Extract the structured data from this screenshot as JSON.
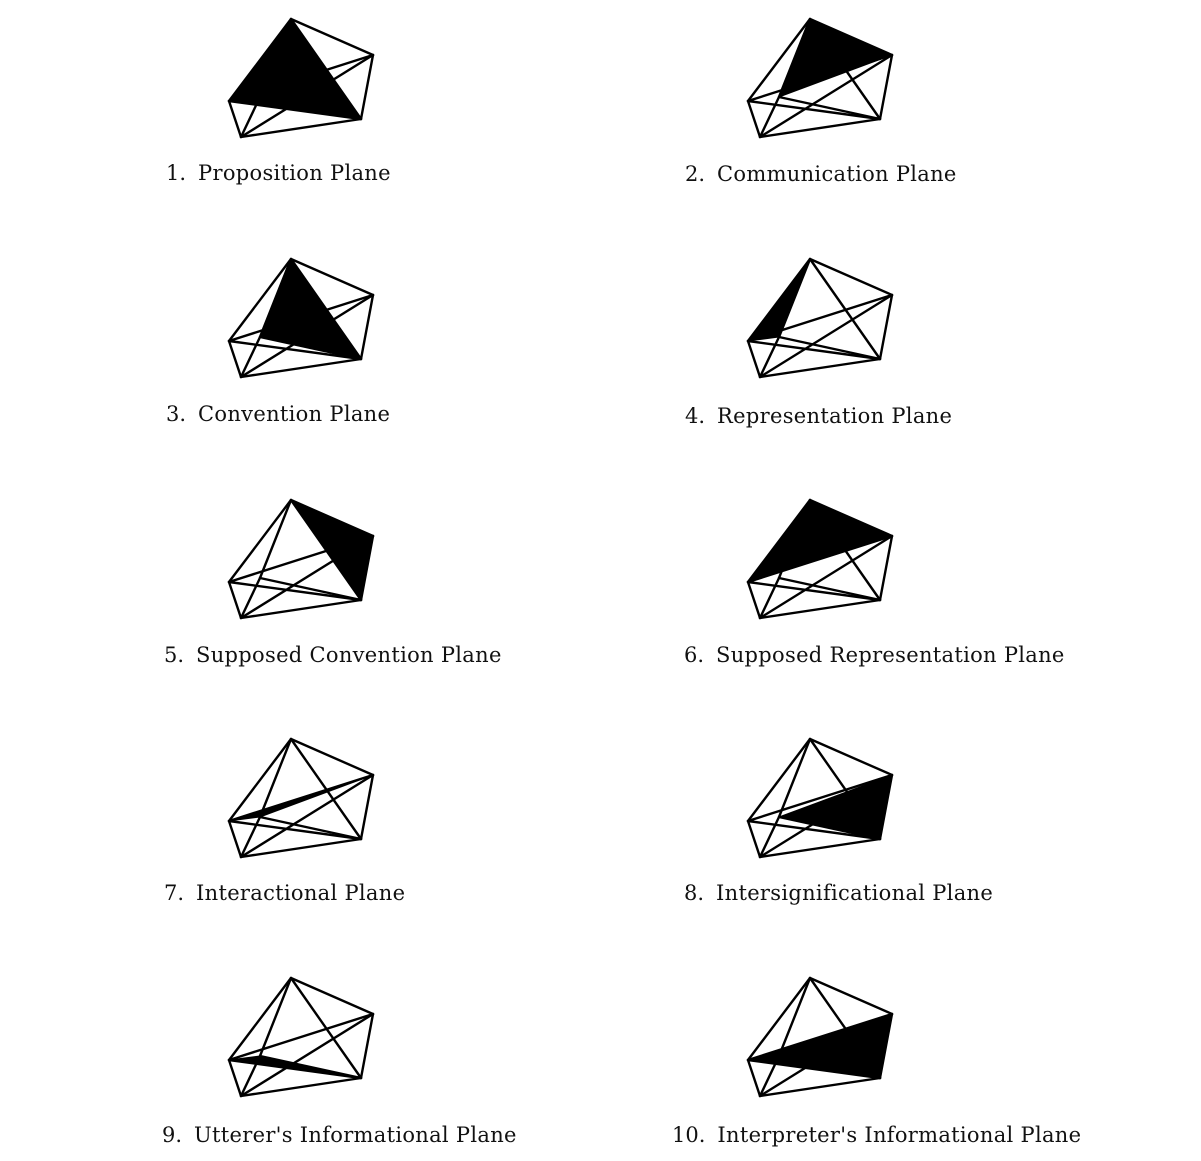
{
  "colors": {
    "ink": "#000000",
    "paper": "#ffffff"
  },
  "planes": [
    {
      "number": "1.",
      "label": "Proposition Plane",
      "shaded_vertices": [
        "A",
        "B",
        "E"
      ]
    },
    {
      "number": "2.",
      "label": "Communication Plane",
      "shaded_vertices": [
        "A",
        "C",
        "F"
      ]
    },
    {
      "number": "3.",
      "label": "Convention Plane",
      "shaded_vertices": [
        "A",
        "E",
        "F"
      ]
    },
    {
      "number": "4.",
      "label": "Representation Plane",
      "shaded_vertices": [
        "A",
        "B",
        "F"
      ]
    },
    {
      "number": "5.",
      "label": "Supposed Convention Plane",
      "shaded_vertices": [
        "A",
        "C",
        "E"
      ]
    },
    {
      "number": "6.",
      "label": "Supposed Representation Plane",
      "shaded_vertices": [
        "A",
        "B",
        "C"
      ]
    },
    {
      "number": "7.",
      "label": "Interactional Plane",
      "shaded_vertices": [
        "B",
        "C",
        "F"
      ]
    },
    {
      "number": "8.",
      "label": "Intersignificational Plane",
      "shaded_vertices": [
        "C",
        "E",
        "F"
      ]
    },
    {
      "number": "9.",
      "label": "Utterer's Informational Plane",
      "shaded_vertices": [
        "B",
        "E",
        "F"
      ]
    },
    {
      "number": "10.",
      "label": "Interpreter's Informational Plane",
      "shaded_vertices": [
        "B",
        "C",
        "E"
      ]
    }
  ]
}
